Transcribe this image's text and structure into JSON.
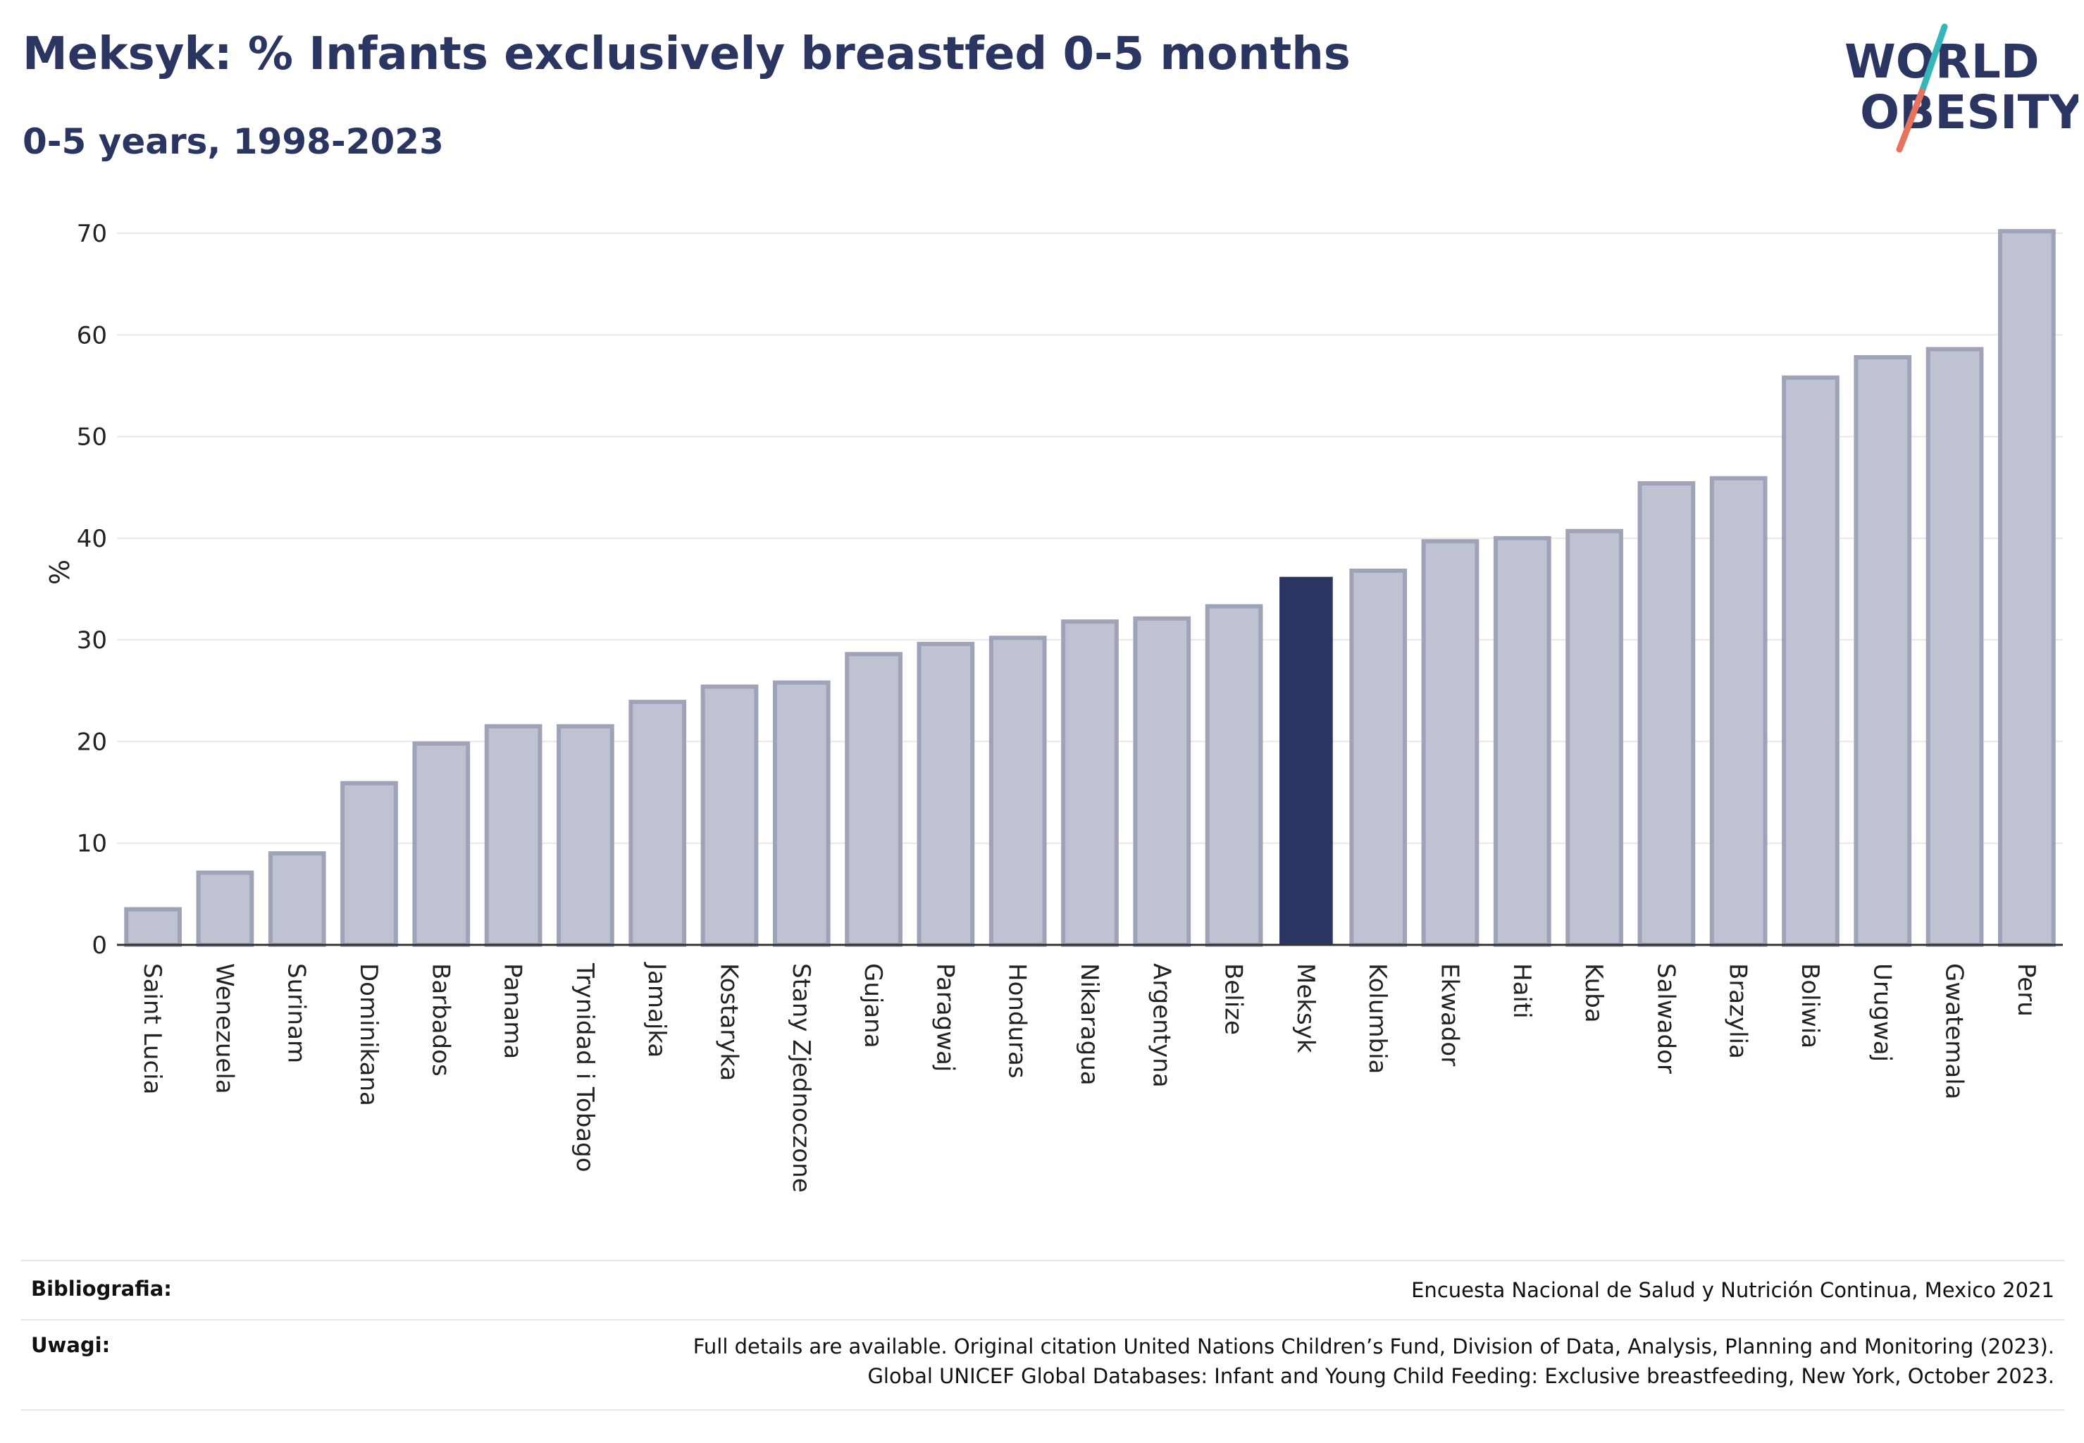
{
  "header": {
    "title": "Meksyk: % Infants exclusively breastfed 0-5 months",
    "subtitle": "0-5 years, 1998-2023"
  },
  "logo": {
    "line1": "WORLD",
    "line2": "OBESITY"
  },
  "colors": {
    "highlight": "#2b3562",
    "bar_fill": "#bfc2d0",
    "bar_stroke": "#9ea3b8",
    "grid": "#e8e8ec",
    "text": "#2b3562",
    "logo_teal": "#35b6b9",
    "logo_coral": "#e8735c"
  },
  "chart_data": {
    "type": "bar",
    "ylabel": "%",
    "ylim": [
      0,
      70
    ],
    "yticks": [
      "0",
      "10",
      "20",
      "30",
      "40",
      "50",
      "60",
      "70"
    ],
    "grid": true,
    "highlight": "Meksyk",
    "categories": [
      "Saint Lucia",
      "Wenezuela",
      "Surinam",
      "Dominikana",
      "Barbados",
      "Panama",
      "Trynidad i Tobago",
      "Jamajka",
      "Kostaryka",
      "Stany Zjednoczone",
      "Gujana",
      "Paragwaj",
      "Honduras",
      "Nikaragua",
      "Argentyna",
      "Belize",
      "Meksyk",
      "Kolumbia",
      "Ekwador",
      "Haiti",
      "Kuba",
      "Salwador",
      "Brazylia",
      "Boliwia",
      "Urugwaj",
      "Gwatemala",
      "Peru"
    ],
    "values": [
      3.5,
      7.1,
      9.0,
      15.9,
      19.8,
      21.5,
      21.5,
      23.9,
      25.4,
      25.8,
      28.6,
      29.6,
      30.2,
      31.8,
      32.1,
      33.3,
      36.2,
      36.8,
      39.7,
      40.0,
      40.7,
      45.4,
      45.9,
      55.8,
      57.8,
      58.6,
      70.2
    ]
  },
  "footer": {
    "bibliography_label": "Bibliografia:",
    "bibliography_text": "Encuesta Nacional de Salud y Nutrición Continua, Mexico 2021",
    "notes_label": "Uwagi:",
    "notes_line1": "Full details are available. Original citation United Nations Children’s Fund, Division of Data, Analysis, Planning and Monitoring (2023).",
    "notes_line2": "Global UNICEF Global Databases: Infant and Young Child Feeding: Exclusive breastfeeding, New York, October 2023."
  }
}
